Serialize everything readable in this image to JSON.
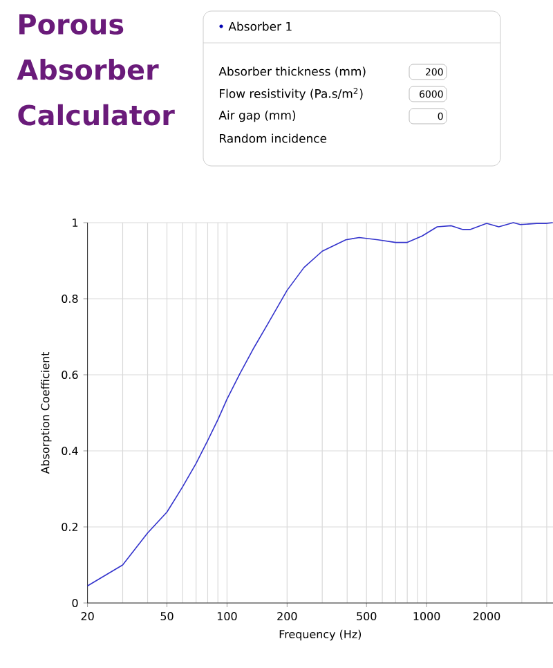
{
  "chart_data": {
    "type": "line",
    "title": "Porous Absorber Calculator",
    "xlabel": "Frequency (Hz)",
    "ylabel": "Absorption Coefficient",
    "annotations": [
      "Absorber 1",
      "Absorber thickness (mm)",
      "200",
      "Flow resistivity (Pa.s/m$^{2}$)",
      "6000",
      "Air gap (mm)",
      "0",
      "Random incidence"
    ],
    "log": "x",
    "grid": true,
    "xlim": [
      20,
      4300
    ],
    "ylim": [
      0,
      1
    ],
    "xticks": [
      20,
      50,
      100,
      200,
      500,
      1000,
      2000
    ],
    "yticks": [
      0,
      0.2,
      0.4,
      0.6,
      0.8,
      1
    ],
    "x": [
      20,
      30,
      40,
      50,
      60,
      70,
      80,
      90,
      100,
      116,
      136,
      159,
      200,
      243,
      300,
      394,
      460,
      570,
      700,
      800,
      950,
      1130,
      1330,
      1520,
      1650,
      2000,
      2300,
      2720,
      2950,
      3560,
      3960,
      4290
    ],
    "series": [
      {
        "color": "#3333cc",
        "values": [
          0.045,
          0.1,
          0.184,
          0.239,
          0.306,
          0.367,
          0.427,
          0.482,
          0.536,
          0.603,
          0.67,
          0.731,
          0.822,
          0.882,
          0.925,
          0.955,
          0.961,
          0.955,
          0.948,
          0.948,
          0.965,
          0.989,
          0.992,
          0.982,
          0.982,
          0.998,
          0.989,
          1.0,
          0.995,
          0.998,
          0.998,
          1.0
        ]
      }
    ]
  }
}
